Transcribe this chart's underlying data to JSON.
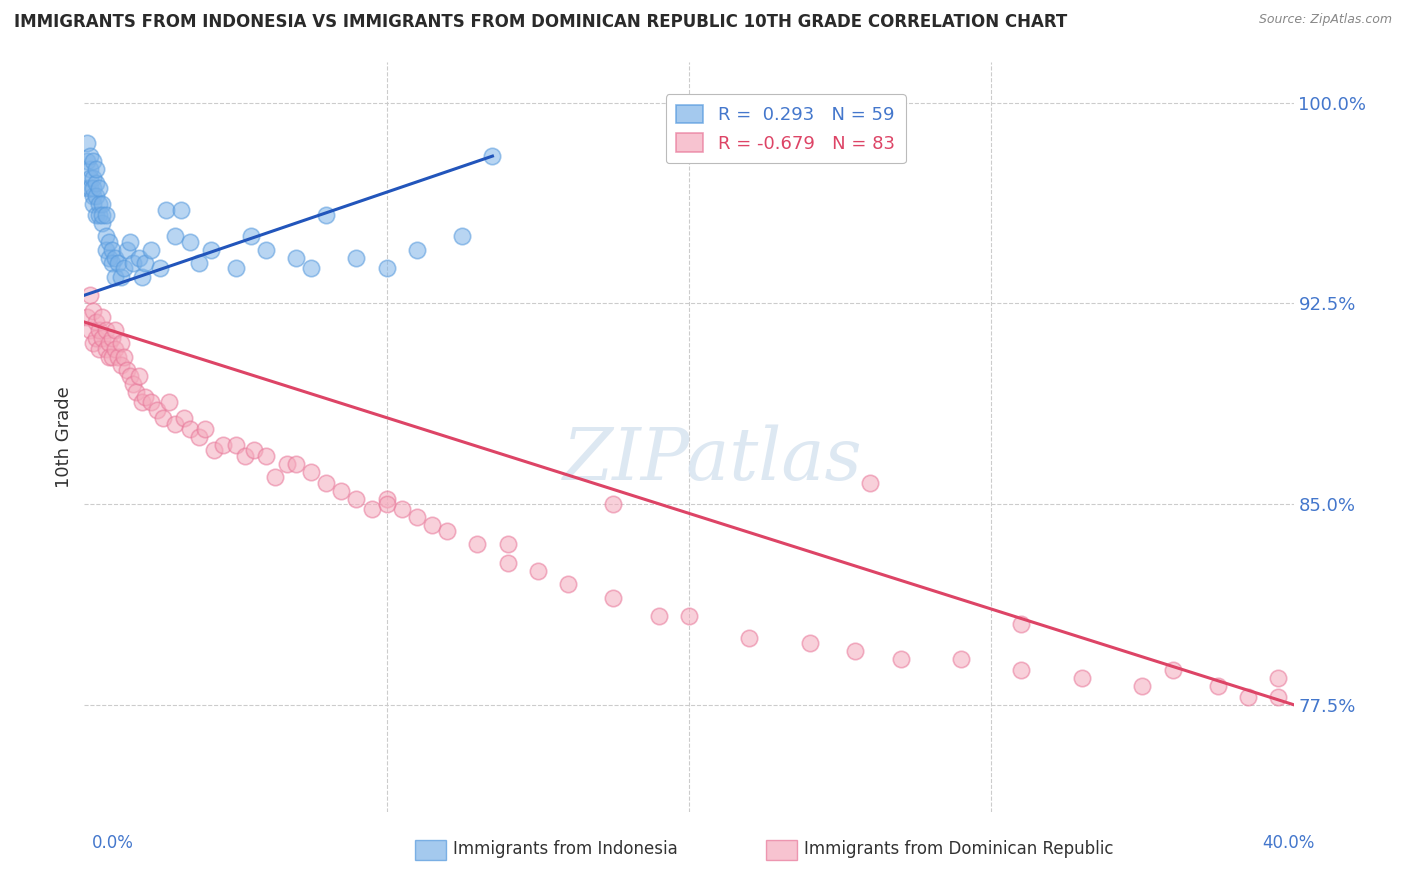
{
  "title": "IMMIGRANTS FROM INDONESIA VS IMMIGRANTS FROM DOMINICAN REPUBLIC 10TH GRADE CORRELATION CHART",
  "source": "Source: ZipAtlas.com",
  "ylabel": "10th Grade",
  "x_min": 0.0,
  "x_max": 0.4,
  "y_min": 0.735,
  "y_max": 1.015,
  "yticks": [
    0.775,
    0.85,
    0.925,
    1.0
  ],
  "ytick_labels": [
    "77.5%",
    "85.0%",
    "92.5%",
    "100.0%"
  ],
  "blue_color": "#7EB3E8",
  "pink_color": "#F4AABC",
  "blue_edge_color": "#5599DD",
  "pink_edge_color": "#E87799",
  "blue_line_color": "#2255BB",
  "pink_line_color": "#DD4466",
  "right_axis_color": "#4477CC",
  "watermark": "ZIPatlas",
  "legend_label_blue": "Immigrants from Indonesia",
  "legend_label_pink": "Immigrants from Dominican Republic",
  "blue_trend_x0": 0.0,
  "blue_trend_x1": 0.135,
  "blue_trend_y0": 0.928,
  "blue_trend_y1": 0.98,
  "pink_trend_x0": 0.0,
  "pink_trend_x1": 0.4,
  "pink_trend_y0": 0.918,
  "pink_trend_y1": 0.775,
  "blue_scatter_x": [
    0.001,
    0.001,
    0.001,
    0.002,
    0.002,
    0.002,
    0.002,
    0.003,
    0.003,
    0.003,
    0.003,
    0.003,
    0.004,
    0.004,
    0.004,
    0.004,
    0.005,
    0.005,
    0.005,
    0.006,
    0.006,
    0.006,
    0.007,
    0.007,
    0.007,
    0.008,
    0.008,
    0.009,
    0.009,
    0.01,
    0.01,
    0.011,
    0.012,
    0.013,
    0.014,
    0.015,
    0.016,
    0.018,
    0.019,
    0.02,
    0.022,
    0.025,
    0.027,
    0.03,
    0.032,
    0.035,
    0.038,
    0.042,
    0.05,
    0.055,
    0.06,
    0.07,
    0.075,
    0.08,
    0.09,
    0.1,
    0.11,
    0.125,
    0.135
  ],
  "blue_scatter_y": [
    0.978,
    0.968,
    0.985,
    0.975,
    0.972,
    0.968,
    0.98,
    0.965,
    0.972,
    0.968,
    0.978,
    0.962,
    0.97,
    0.965,
    0.975,
    0.958,
    0.968,
    0.962,
    0.958,
    0.955,
    0.962,
    0.958,
    0.95,
    0.958,
    0.945,
    0.948,
    0.942,
    0.945,
    0.94,
    0.942,
    0.935,
    0.94,
    0.935,
    0.938,
    0.945,
    0.948,
    0.94,
    0.942,
    0.935,
    0.94,
    0.945,
    0.938,
    0.96,
    0.95,
    0.96,
    0.948,
    0.94,
    0.945,
    0.938,
    0.95,
    0.945,
    0.942,
    0.938,
    0.958,
    0.942,
    0.938,
    0.945,
    0.95,
    0.98
  ],
  "pink_scatter_x": [
    0.001,
    0.002,
    0.002,
    0.003,
    0.003,
    0.004,
    0.004,
    0.005,
    0.005,
    0.006,
    0.006,
    0.007,
    0.007,
    0.008,
    0.008,
    0.009,
    0.009,
    0.01,
    0.01,
    0.011,
    0.012,
    0.012,
    0.013,
    0.014,
    0.015,
    0.016,
    0.017,
    0.018,
    0.019,
    0.02,
    0.022,
    0.024,
    0.026,
    0.028,
    0.03,
    0.033,
    0.035,
    0.038,
    0.04,
    0.043,
    0.046,
    0.05,
    0.053,
    0.056,
    0.06,
    0.063,
    0.067,
    0.07,
    0.075,
    0.08,
    0.085,
    0.09,
    0.095,
    0.1,
    0.105,
    0.11,
    0.115,
    0.12,
    0.13,
    0.14,
    0.15,
    0.16,
    0.175,
    0.19,
    0.2,
    0.22,
    0.24,
    0.255,
    0.27,
    0.29,
    0.31,
    0.33,
    0.35,
    0.36,
    0.375,
    0.385,
    0.395,
    0.395,
    0.31,
    0.26,
    0.175,
    0.14,
    0.1
  ],
  "pink_scatter_y": [
    0.92,
    0.928,
    0.915,
    0.922,
    0.91,
    0.918,
    0.912,
    0.915,
    0.908,
    0.912,
    0.92,
    0.908,
    0.915,
    0.91,
    0.905,
    0.912,
    0.905,
    0.908,
    0.915,
    0.905,
    0.902,
    0.91,
    0.905,
    0.9,
    0.898,
    0.895,
    0.892,
    0.898,
    0.888,
    0.89,
    0.888,
    0.885,
    0.882,
    0.888,
    0.88,
    0.882,
    0.878,
    0.875,
    0.878,
    0.87,
    0.872,
    0.872,
    0.868,
    0.87,
    0.868,
    0.86,
    0.865,
    0.865,
    0.862,
    0.858,
    0.855,
    0.852,
    0.848,
    0.852,
    0.848,
    0.845,
    0.842,
    0.84,
    0.835,
    0.828,
    0.825,
    0.82,
    0.815,
    0.808,
    0.808,
    0.8,
    0.798,
    0.795,
    0.792,
    0.792,
    0.788,
    0.785,
    0.782,
    0.788,
    0.782,
    0.778,
    0.778,
    0.785,
    0.805,
    0.858,
    0.85,
    0.835,
    0.85
  ]
}
